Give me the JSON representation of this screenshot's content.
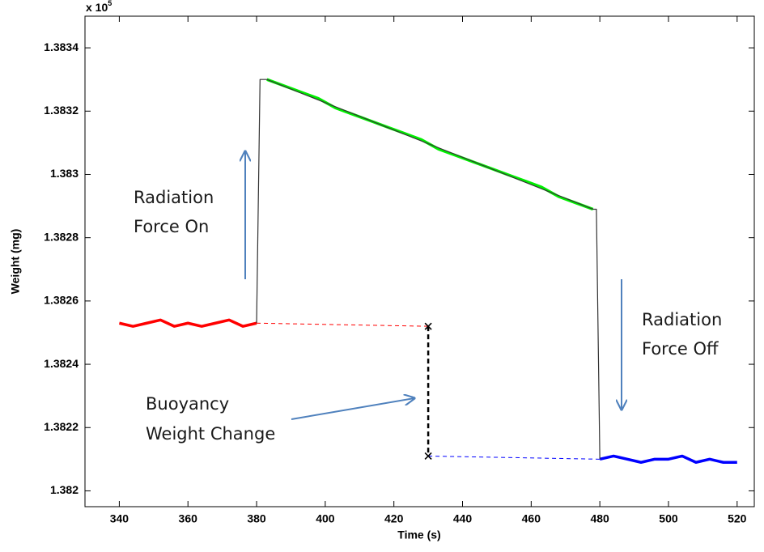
{
  "chart_data": {
    "type": "line",
    "x_label": "Time (s)",
    "y_label": "Weight (mg)",
    "y_multiplier": {
      "base": "x 10",
      "exponent": "5"
    },
    "xlim": [
      330,
      525
    ],
    "ylim": [
      1.38195,
      1.3835
    ],
    "xticks": [
      340,
      360,
      380,
      400,
      420,
      440,
      460,
      480,
      500,
      520
    ],
    "yticks": [
      1.382,
      1.3822,
      1.3824,
      1.3826,
      1.3828,
      1.383,
      1.3832,
      1.3834
    ],
    "grid": false,
    "series": [
      {
        "color": "#ff0000",
        "width": 3.5,
        "dash": false,
        "x": [
          340,
          344,
          348,
          352,
          356,
          360,
          364,
          368,
          372,
          376,
          380
        ],
        "values": [
          1.38253,
          1.38252,
          1.38253,
          1.38254,
          1.38252,
          1.38253,
          1.38252,
          1.38253,
          1.38254,
          1.38252,
          1.38253
        ]
      },
      {
        "color": "#00ee00",
        "width": 3.5,
        "dash": false,
        "x": [
          383,
          388,
          393,
          398,
          403,
          408,
          413,
          418,
          423,
          428,
          433,
          438,
          443,
          448,
          453,
          458,
          463,
          468,
          473,
          478
        ],
        "values": [
          1.3833,
          1.38328,
          1.38326,
          1.38324,
          1.38321,
          1.38319,
          1.38317,
          1.38315,
          1.38313,
          1.38311,
          1.38308,
          1.38306,
          1.38304,
          1.38302,
          1.383,
          1.38298,
          1.38296,
          1.38293,
          1.38291,
          1.38289
        ]
      },
      {
        "color": "#0000ff",
        "width": 3.5,
        "dash": false,
        "x": [
          480,
          484,
          488,
          492,
          496,
          500,
          504,
          508,
          512,
          516,
          520
        ],
        "values": [
          1.3821,
          1.38211,
          1.3821,
          1.38209,
          1.3821,
          1.3821,
          1.38211,
          1.38209,
          1.3821,
          1.38209,
          1.38209
        ]
      },
      {
        "color": "#333333",
        "width": 1.2,
        "dash": false,
        "x": [
          380,
          381,
          383,
          478,
          479,
          480
        ],
        "values": [
          1.38253,
          1.3833,
          1.3833,
          1.38289,
          1.38289,
          1.3821
        ]
      },
      {
        "color": "#ff0000",
        "width": 1,
        "dash": true,
        "x": [
          380,
          430
        ],
        "values": [
          1.38253,
          1.38252
        ]
      },
      {
        "color": "#0000ff",
        "width": 1,
        "dash": true,
        "x": [
          430,
          480
        ],
        "values": [
          1.38211,
          1.3821
        ]
      },
      {
        "color": "#000000",
        "width": 2.5,
        "dash": true,
        "marker": "x",
        "x": [
          430,
          430
        ],
        "values": [
          1.38252,
          1.38211
        ]
      }
    ],
    "annotations": [
      {
        "lines": [
          "Radiation",
          "Force On"
        ]
      },
      {
        "lines": [
          "Radiation",
          "Force Off"
        ]
      },
      {
        "lines": [
          "Buoyancy",
          "Weight Change"
        ]
      }
    ]
  }
}
